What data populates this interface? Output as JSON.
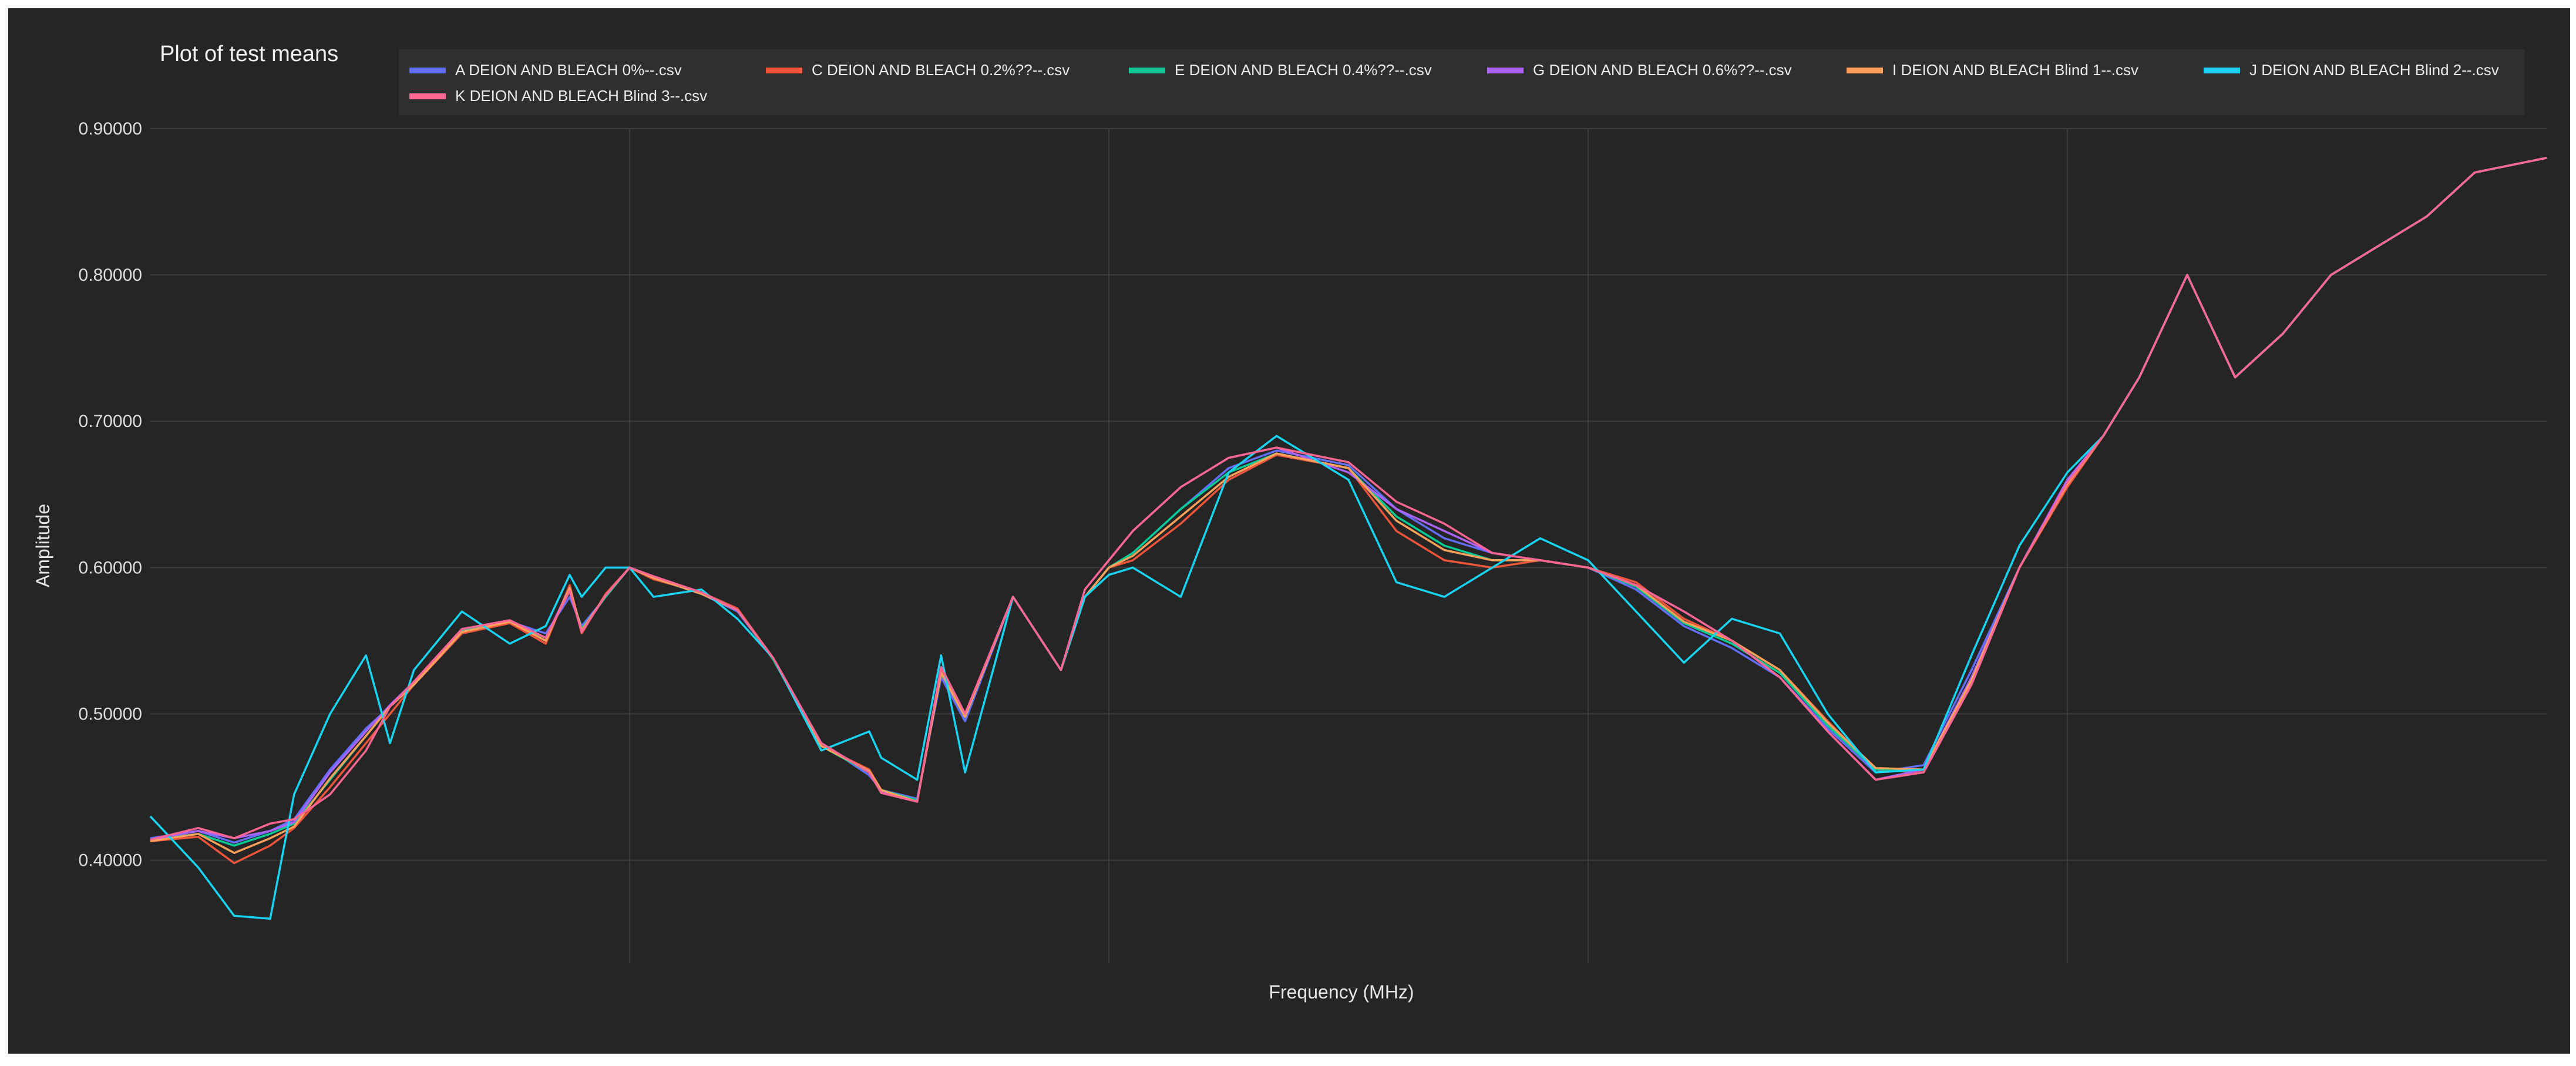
{
  "chart_data": {
    "type": "line",
    "title": "Plot of test means",
    "xlabel": "Frequency (MHz)",
    "ylabel": "Amplitude",
    "x_range": [
      0,
      1
    ],
    "ylim": [
      0.33,
      0.9
    ],
    "yticks": [
      {
        "value": 0.4,
        "label": "0.40000"
      },
      {
        "value": 0.5,
        "label": "0.50000"
      },
      {
        "value": 0.6,
        "label": "0.60000"
      },
      {
        "value": 0.7,
        "label": "0.70000"
      },
      {
        "value": 0.8,
        "label": "0.80000"
      },
      {
        "value": 0.9,
        "label": "0.90000"
      }
    ],
    "xgrid": [
      0.2,
      0.4,
      0.6,
      0.8
    ],
    "grid": true,
    "legend_position": "top",
    "x": [
      0.0,
      0.02,
      0.035,
      0.05,
      0.06,
      0.075,
      0.09,
      0.1,
      0.11,
      0.13,
      0.15,
      0.165,
      0.175,
      0.18,
      0.19,
      0.2,
      0.21,
      0.23,
      0.245,
      0.26,
      0.28,
      0.3,
      0.305,
      0.32,
      0.33,
      0.34,
      0.36,
      0.38,
      0.39,
      0.4,
      0.41,
      0.43,
      0.45,
      0.47,
      0.5,
      0.52,
      0.54,
      0.56,
      0.58,
      0.6,
      0.62,
      0.64,
      0.66,
      0.68,
      0.7,
      0.72,
      0.74,
      0.76,
      0.78,
      0.8,
      0.815,
      0.83,
      0.85,
      0.87,
      0.89,
      0.91,
      0.92,
      0.93,
      0.95,
      0.97,
      1.0
    ],
    "series": [
      {
        "name": "A DEION AND BLEACH 0%--.csv",
        "color": "#636efa",
        "values": [
          0.415,
          0.42,
          0.412,
          0.42,
          0.428,
          0.462,
          0.49,
          0.505,
          0.52,
          0.555,
          0.563,
          0.555,
          0.58,
          0.56,
          0.58,
          0.6,
          0.593,
          0.582,
          0.57,
          0.538,
          0.48,
          0.458,
          0.448,
          0.442,
          0.525,
          0.495,
          0.58,
          0.53,
          0.58,
          0.6,
          0.61,
          0.64,
          0.668,
          0.68,
          0.67,
          0.64,
          0.62,
          0.61,
          0.605,
          0.6,
          0.585,
          0.56,
          0.545,
          0.525,
          0.49,
          0.46,
          0.465,
          0.53,
          0.6,
          0.66,
          0.69,
          0.73,
          0.8,
          0.73,
          0.76,
          0.8,
          0.81,
          0.82,
          0.84,
          0.87,
          0.88
        ]
      },
      {
        "name": "C DEION AND BLEACH 0.2%??--.csv",
        "color": "#ef553b",
        "values": [
          0.413,
          0.416,
          0.398,
          0.41,
          0.422,
          0.45,
          0.48,
          0.5,
          0.52,
          0.555,
          0.562,
          0.548,
          0.588,
          0.555,
          0.582,
          0.6,
          0.592,
          0.583,
          0.572,
          0.538,
          0.478,
          0.462,
          0.448,
          0.44,
          0.53,
          0.5,
          0.58,
          0.53,
          0.58,
          0.6,
          0.605,
          0.63,
          0.66,
          0.677,
          0.668,
          0.625,
          0.605,
          0.6,
          0.605,
          0.6,
          0.59,
          0.565,
          0.55,
          0.53,
          0.495,
          0.462,
          0.46,
          0.52,
          0.6,
          0.655,
          0.69,
          0.73,
          0.8,
          0.73,
          0.76,
          0.8,
          0.81,
          0.82,
          0.84,
          0.87,
          0.88
        ]
      },
      {
        "name": "E DEION AND BLEACH 0.4%??--.csv",
        "color": "#00cc96",
        "values": [
          0.414,
          0.418,
          0.41,
          0.418,
          0.425,
          0.455,
          0.485,
          0.505,
          0.52,
          0.557,
          0.563,
          0.552,
          0.585,
          0.558,
          0.58,
          0.6,
          0.593,
          0.582,
          0.571,
          0.537,
          0.478,
          0.46,
          0.448,
          0.441,
          0.528,
          0.498,
          0.58,
          0.53,
          0.58,
          0.6,
          0.61,
          0.64,
          0.665,
          0.678,
          0.668,
          0.635,
          0.615,
          0.605,
          0.605,
          0.6,
          0.587,
          0.562,
          0.548,
          0.528,
          0.492,
          0.462,
          0.462,
          0.525,
          0.6,
          0.658,
          0.69,
          0.73,
          0.8,
          0.73,
          0.76,
          0.8,
          0.81,
          0.82,
          0.84,
          0.87,
          0.88
        ]
      },
      {
        "name": "G DEION AND BLEACH 0.6%??--.csv",
        "color": "#ab63fa",
        "values": [
          0.414,
          0.42,
          0.415,
          0.42,
          0.426,
          0.46,
          0.488,
          0.506,
          0.522,
          0.558,
          0.564,
          0.552,
          0.586,
          0.556,
          0.581,
          0.6,
          0.594,
          0.583,
          0.571,
          0.538,
          0.48,
          0.46,
          0.447,
          0.44,
          0.532,
          0.5,
          0.58,
          0.53,
          0.585,
          0.605,
          0.625,
          0.655,
          0.675,
          0.682,
          0.665,
          0.64,
          0.625,
          0.61,
          0.605,
          0.6,
          0.588,
          0.57,
          0.55,
          0.525,
          0.488,
          0.455,
          0.462,
          0.525,
          0.6,
          0.66,
          0.69,
          0.73,
          0.8,
          0.73,
          0.76,
          0.8,
          0.81,
          0.82,
          0.84,
          0.87,
          0.88
        ]
      },
      {
        "name": "I DEION AND BLEACH Blind 1--.csv",
        "color": "#ffa15a",
        "values": [
          0.413,
          0.418,
          0.405,
          0.415,
          0.423,
          0.456,
          0.485,
          0.505,
          0.52,
          0.556,
          0.563,
          0.55,
          0.586,
          0.557,
          0.581,
          0.6,
          0.593,
          0.582,
          0.571,
          0.538,
          0.478,
          0.461,
          0.448,
          0.44,
          0.528,
          0.498,
          0.58,
          0.53,
          0.58,
          0.6,
          0.608,
          0.635,
          0.662,
          0.678,
          0.668,
          0.632,
          0.612,
          0.605,
          0.605,
          0.6,
          0.588,
          0.563,
          0.55,
          0.53,
          0.494,
          0.463,
          0.462,
          0.523,
          0.6,
          0.657,
          0.69,
          0.73,
          0.8,
          0.73,
          0.76,
          0.8,
          0.81,
          0.82,
          0.84,
          0.87,
          0.88
        ]
      },
      {
        "name": "J DEION AND BLEACH Blind 2--.csv",
        "color": "#19d3f3",
        "values": [
          0.43,
          0.395,
          0.362,
          0.36,
          0.445,
          0.5,
          0.54,
          0.48,
          0.53,
          0.57,
          0.548,
          0.56,
          0.595,
          0.58,
          0.6,
          0.6,
          0.58,
          0.585,
          0.565,
          0.538,
          0.475,
          0.488,
          0.47,
          0.455,
          0.54,
          0.46,
          0.58,
          0.53,
          0.58,
          0.595,
          0.6,
          0.58,
          0.665,
          0.69,
          0.66,
          0.59,
          0.58,
          0.6,
          0.62,
          0.605,
          0.57,
          0.535,
          0.565,
          0.555,
          0.5,
          0.46,
          0.462,
          0.54,
          0.615,
          0.665,
          0.69,
          0.73,
          0.8,
          0.73,
          0.76,
          0.8,
          0.81,
          0.82,
          0.84,
          0.87,
          0.88
        ]
      },
      {
        "name": "K DEION AND BLEACH Blind 3--.csv",
        "color": "#ff6692",
        "values": [
          0.414,
          0.422,
          0.415,
          0.425,
          0.428,
          0.445,
          0.475,
          0.505,
          0.522,
          0.558,
          0.564,
          0.552,
          0.584,
          0.556,
          0.581,
          0.6,
          0.594,
          0.583,
          0.571,
          0.538,
          0.48,
          0.46,
          0.446,
          0.44,
          0.532,
          0.5,
          0.58,
          0.53,
          0.585,
          0.605,
          0.625,
          0.655,
          0.675,
          0.682,
          0.672,
          0.645,
          0.63,
          0.61,
          0.605,
          0.6,
          0.588,
          0.57,
          0.55,
          0.525,
          0.488,
          0.455,
          0.46,
          0.52,
          0.6,
          0.658,
          0.69,
          0.73,
          0.8,
          0.73,
          0.76,
          0.8,
          0.81,
          0.82,
          0.84,
          0.87,
          0.88
        ]
      }
    ]
  }
}
